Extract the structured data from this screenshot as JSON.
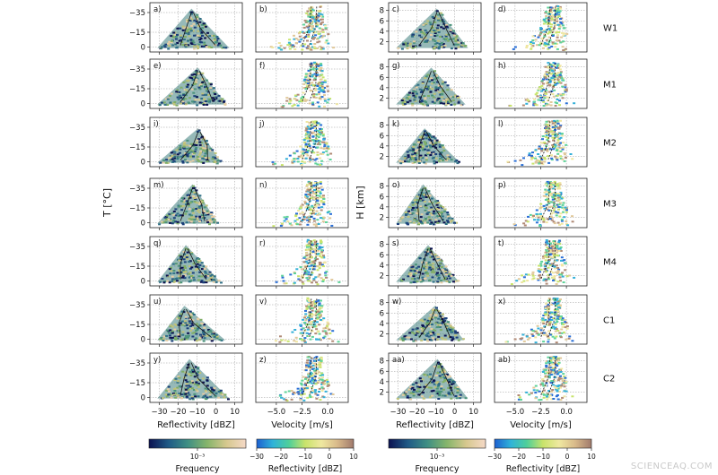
{
  "chart_data": {
    "type": "heatmap",
    "rows": [
      "W1",
      "M1",
      "M2",
      "M3",
      "M4",
      "C1",
      "C2"
    ],
    "panel_labels": [
      [
        "a)",
        "b)",
        "c)",
        "d)"
      ],
      [
        "e)",
        "f)",
        "g)",
        "h)"
      ],
      [
        "i)",
        "j)",
        "k)",
        "l)"
      ],
      [
        "m)",
        "n)",
        "o)",
        "p)"
      ],
      [
        "q)",
        "r)",
        "s)",
        "t)"
      ],
      [
        "u)",
        "v)",
        "w)",
        "x)"
      ],
      [
        "y)",
        "z)",
        "aa)",
        "ab)"
      ]
    ],
    "y_axes": {
      "temperature": {
        "label": "T [°C]",
        "ticks": [
          -35,
          -15,
          0
        ],
        "tick_labels": [
          "−35",
          "−15",
          "0"
        ]
      },
      "height": {
        "label": "H [km]",
        "ticks": [
          2,
          4,
          6,
          8
        ],
        "tick_labels": [
          "2",
          "4",
          "6",
          "8"
        ]
      }
    },
    "x_axes": {
      "reflectivity": {
        "label": "Reflectivity [dBZ]",
        "ticks": [
          -30,
          -20,
          -10,
          0,
          10
        ],
        "tick_labels": [
          "−30",
          "−20",
          "−10",
          "0",
          "10"
        ]
      },
      "velocity": {
        "label": "Velocity [m/s]",
        "ticks": [
          -5.0,
          -2.5,
          0.0
        ],
        "tick_labels": [
          "−5.0",
          "−2.5",
          "0.0"
        ]
      }
    },
    "colorbars": [
      {
        "label": "Frequency",
        "tick_labels": [
          "10⁻³"
        ],
        "colormap": [
          "#0b1150",
          "#1f5a86",
          "#3f8f84",
          "#86b56b",
          "#d6c88e",
          "#f5d9c7"
        ]
      },
      {
        "label": "Reflectivity [dBZ]",
        "tick_labels": [
          "−30",
          "−20",
          "−10",
          "0",
          "10"
        ],
        "colormap": [
          "#1d5fd0",
          "#2fb3d9",
          "#4fcf9a",
          "#c9e36a",
          "#efe8a0",
          "#d8b98a",
          "#a07a6c"
        ]
      },
      {
        "label": "Frequency",
        "tick_labels": [
          "10⁻³"
        ],
        "colormap": [
          "#0b1150",
          "#1f5a86",
          "#3f8f84",
          "#86b56b",
          "#d6c88e",
          "#f5d9c7"
        ]
      },
      {
        "label": "Reflectivity [dBZ]",
        "tick_labels": [
          "−30",
          "−20",
          "−10",
          "0",
          "10"
        ],
        "colormap": [
          "#1d5fd0",
          "#2fb3d9",
          "#4fcf9a",
          "#c9e36a",
          "#efe8a0",
          "#d8b98a",
          "#a07a6c"
        ]
      }
    ],
    "grid": true
  },
  "watermark": "SCIENCEAQ.COM"
}
